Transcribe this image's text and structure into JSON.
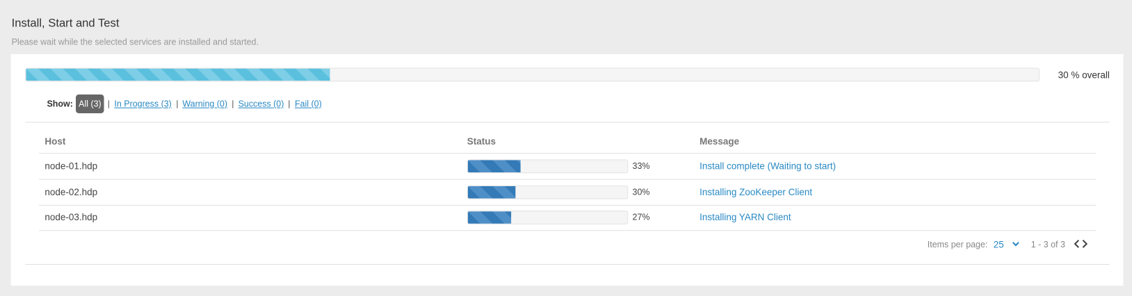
{
  "header": {
    "title": "Install, Start and Test",
    "subtitle": "Please wait while the selected services are installed and started."
  },
  "overall": {
    "value": 30,
    "label": "30 % overall"
  },
  "filter": {
    "label": "Show:",
    "options": [
      "All (3)",
      "In Progress (3)",
      "Warning (0)",
      "Success (0)",
      "Fail (0)"
    ]
  },
  "table": {
    "columns": [
      "Host",
      "Status",
      "Message"
    ],
    "rows": [
      {
        "host": "node-01.hdp",
        "progress": {
          "value": 33,
          "label": "33%"
        },
        "message": "Install complete (Waiting to start)"
      },
      {
        "host": "node-02.hdp",
        "progress": {
          "value": 30,
          "label": "30%"
        },
        "message": "Installing ZooKeeper Client"
      },
      {
        "host": "node-03.hdp",
        "progress": {
          "value": 27,
          "label": "27%"
        },
        "message": "Installing YARN Client"
      }
    ]
  },
  "pagination": {
    "items_label": "Items per page:",
    "page_size": "25",
    "range": "1 - 3 of 3"
  }
}
